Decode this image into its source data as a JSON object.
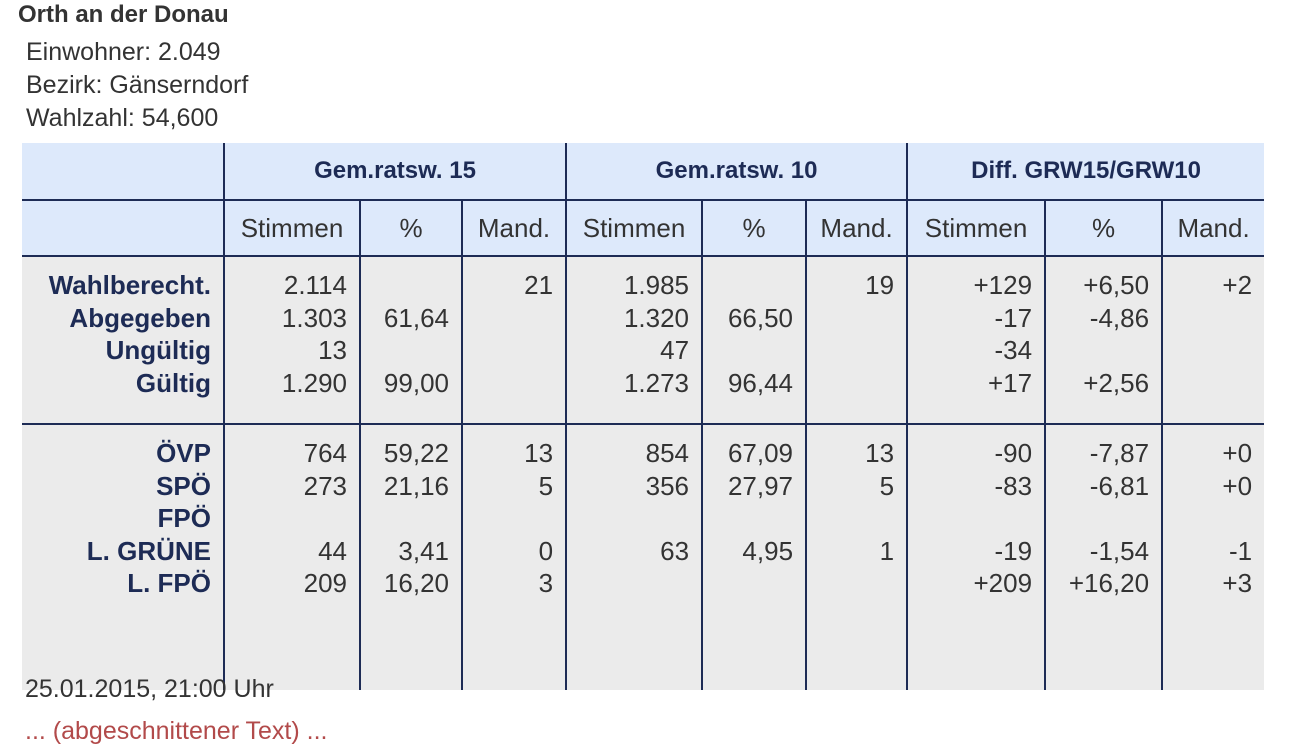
{
  "title": "Orth an der Donau",
  "info": [
    "Einwohner: 2.049",
    "Bezirk: Gänserndorf",
    "Wahlzahl: 54,600"
  ],
  "groups": [
    "Gem.ratsw. 15",
    "Gem.ratsw. 10",
    "Diff. GRW15/GRW10"
  ],
  "subheaders": [
    "Stimmen",
    "%",
    "Mand.",
    "Stimmen",
    "%",
    "Mand.",
    "Stimmen",
    "%",
    "Mand."
  ],
  "sections": [
    {
      "labels": [
        "Wahlberecht.",
        "Abgegeben",
        "Ungültig",
        "Gültig"
      ],
      "columns": [
        [
          "2.114",
          "1.303",
          "13",
          "1.290"
        ],
        [
          "",
          "61,64",
          "",
          "99,00"
        ],
        [
          "21",
          "",
          "",
          ""
        ],
        [
          "1.985",
          "1.320",
          "47",
          "1.273"
        ],
        [
          "",
          "66,50",
          "",
          "96,44"
        ],
        [
          "19",
          "",
          "",
          ""
        ],
        [
          "+129",
          "-17",
          "-34",
          "+17"
        ],
        [
          "+6,50",
          "-4,86",
          "",
          "+2,56"
        ],
        [
          "+2",
          "",
          "",
          ""
        ]
      ]
    },
    {
      "labels": [
        "ÖVP",
        "SPÖ",
        "FPÖ",
        "L. GRÜNE",
        "L. FPÖ"
      ],
      "columns": [
        [
          "764",
          "273",
          "",
          "44",
          "209"
        ],
        [
          "59,22",
          "21,16",
          "",
          "3,41",
          "16,20"
        ],
        [
          "13",
          "5",
          "",
          "0",
          "3"
        ],
        [
          "854",
          "356",
          "",
          "63",
          ""
        ],
        [
          "67,09",
          "27,97",
          "",
          "4,95",
          ""
        ],
        [
          "13",
          "5",
          "",
          "1",
          ""
        ],
        [
          "-90",
          "-83",
          "",
          "-19",
          "+209"
        ],
        [
          "-7,87",
          "-6,81",
          "",
          "-1,54",
          "+16,20"
        ],
        [
          "+0",
          "+0",
          "",
          "-1",
          "+3"
        ]
      ]
    }
  ],
  "timestamp": "25.01.2015, 21:00 Uhr",
  "cut_text": "... (abgeschnittener Text) ..."
}
